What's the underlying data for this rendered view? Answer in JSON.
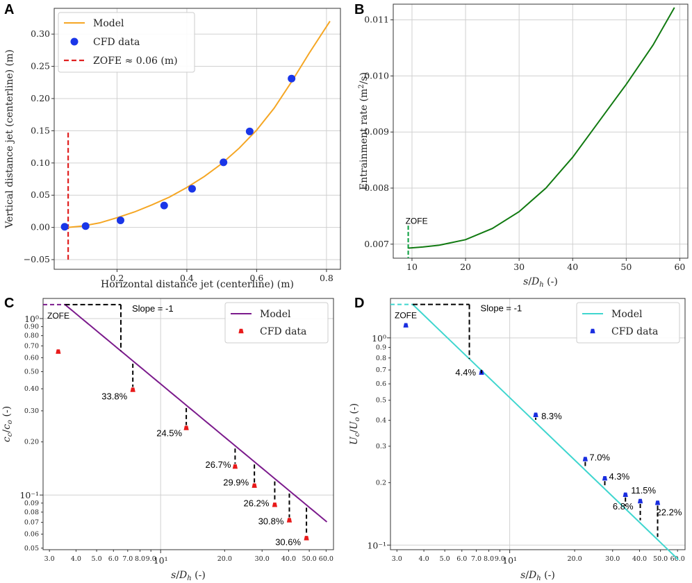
{
  "chart_data": [
    {
      "panel": "A",
      "type": "scatter",
      "xlabel": "Horizontal distance jet (centerline) (m)",
      "ylabel": "Vertical distance jet (centerline) (m)",
      "xlim": [
        0.02,
        0.84
      ],
      "ylim": [
        -0.065,
        0.34
      ],
      "xticks": [
        0.2,
        0.4,
        0.6,
        0.8
      ],
      "xtick_labels": [
        "0.2",
        "0.4",
        "0.6",
        "0.8"
      ],
      "yticks": [
        -0.05,
        0.0,
        0.05,
        0.1,
        0.15,
        0.2,
        0.25,
        0.3
      ],
      "ytick_labels": [
        "−0.05",
        "0.00",
        "0.05",
        "0.10",
        "0.15",
        "0.20",
        "0.25",
        "0.30"
      ],
      "legend": [
        "Model",
        "CFD data",
        "ZOFE ≈ 0.06 (m)"
      ],
      "model": {
        "x": [
          0.06,
          0.1,
          0.15,
          0.2,
          0.25,
          0.3,
          0.35,
          0.4,
          0.45,
          0.5,
          0.55,
          0.6,
          0.65,
          0.7,
          0.75,
          0.81
        ],
        "y": [
          0.0,
          0.002,
          0.007,
          0.015,
          0.024,
          0.035,
          0.047,
          0.062,
          0.079,
          0.099,
          0.123,
          0.151,
          0.185,
          0.226,
          0.27,
          0.32
        ]
      },
      "cfd": {
        "x": [
          0.05,
          0.11,
          0.21,
          0.335,
          0.415,
          0.505,
          0.58,
          0.7
        ],
        "y": [
          0.001,
          0.002,
          0.011,
          0.034,
          0.06,
          0.101,
          0.149,
          0.231
        ]
      },
      "zofe_x": 0.06,
      "zofe_y": [
        -0.05,
        0.15
      ]
    },
    {
      "panel": "B",
      "type": "line",
      "xlabel": "s/D_h (-)",
      "ylabel": "Entrainment rate (m²/s)",
      "xlim": [
        6.5,
        61.5
      ],
      "ylim": [
        0.00675,
        0.01128
      ],
      "xticks": [
        10,
        20,
        30,
        40,
        50,
        60
      ],
      "xtick_labels": [
        "10",
        "20",
        "30",
        "40",
        "50",
        "60"
      ],
      "yticks": [
        0.007,
        0.008,
        0.009,
        0.01,
        0.011
      ],
      "ytick_labels": [
        "0.007",
        "0.008",
        "0.009",
        "0.010",
        "0.011"
      ],
      "model": {
        "x": [
          9.3,
          12,
          15,
          20,
          25,
          30,
          35,
          40,
          45,
          50,
          55,
          59
        ],
        "y": [
          0.00693,
          0.00695,
          0.00698,
          0.00708,
          0.00728,
          0.00758,
          0.008,
          0.00855,
          0.0092,
          0.00985,
          0.01055,
          0.01122
        ]
      },
      "zofe_x": 9.3,
      "zofe_label": "ZOFE"
    },
    {
      "panel": "C",
      "type": "scatter",
      "xscale": "log",
      "yscale": "log",
      "xlabel": "s/D_h (-)",
      "ylabel": "c_c/c_o (-)",
      "xlim": [
        2.8,
        65
      ],
      "ylim": [
        0.049,
        1.3
      ],
      "xticks": [
        3,
        4,
        5,
        6,
        7,
        8,
        9,
        10,
        20,
        30,
        40,
        50,
        60
      ],
      "xtick_labels": [
        "3.0",
        "4.0",
        "5.0",
        "6.0",
        "7.0",
        "8.0",
        "9.0",
        "10¹",
        "20.0",
        "30.0",
        "40.0",
        "50.0",
        "60.0"
      ],
      "yticks": [
        0.05,
        0.06,
        0.07,
        0.08,
        0.09,
        0.1,
        0.2,
        0.3,
        0.4,
        0.5,
        0.6,
        0.7,
        0.8,
        0.9,
        1.0
      ],
      "ytick_labels": [
        "0.05",
        "0.06",
        "0.07",
        "0.08",
        "0.09",
        "10⁻¹",
        "0.20",
        "0.30",
        "0.40",
        "0.50",
        "0.60",
        "0.70",
        "0.80",
        "0.90",
        "10⁰"
      ],
      "legend": [
        "Model",
        "CFD data"
      ],
      "model_x_start": 3.55,
      "model_x_end": 60.5,
      "model_y_at_start": 1.2,
      "zofe_label": "ZOFE",
      "slope_label": "Slope = -1",
      "cfd": {
        "x": [
          3.3,
          7.4,
          13.2,
          22.4,
          27.6,
          34.4,
          40.3,
          48.5
        ],
        "y": [
          0.65,
          0.395,
          0.24,
          0.145,
          0.113,
          0.088,
          0.072,
          0.057
        ]
      },
      "errors": [
        "33.8%",
        "24.5%",
        "26.7%",
        "29.9%",
        "26.2%",
        "30.8%",
        "30.6%"
      ]
    },
    {
      "panel": "D",
      "type": "scatter",
      "xscale": "log",
      "yscale": "log",
      "xlabel": "s/D_h (-)",
      "ylabel": "U_c/U_o (-)",
      "xlim": [
        2.8,
        65
      ],
      "ylim": [
        0.095,
        1.55
      ],
      "xticks": [
        3,
        4,
        5,
        6,
        7,
        8,
        9,
        10,
        20,
        30,
        40,
        50,
        60
      ],
      "xtick_labels": [
        "3.0",
        "4.0",
        "5.0",
        "6.0",
        "7.0",
        "8.0",
        "9.0",
        "10¹",
        "20.0",
        "30.0",
        "40.0",
        "50.0",
        "60.0"
      ],
      "yticks": [
        0.1,
        0.2,
        0.3,
        0.4,
        0.5,
        0.6,
        0.7,
        0.8,
        0.9,
        1.0
      ],
      "ytick_labels": [
        "10⁻¹",
        "0.2",
        "0.3",
        "0.4",
        "0.5",
        "0.6",
        "0.7",
        "0.8",
        "0.9",
        "10⁰"
      ],
      "legend": [
        "Model",
        "CFD data"
      ],
      "model_x_start": 3.55,
      "model_x_end": 60.5,
      "model_y_at_start": 1.45,
      "zofe_label": "ZOFE",
      "slope_label": "Slope = -1",
      "cfd": {
        "x": [
          3.3,
          7.4,
          13.2,
          22.4,
          27.6,
          34.4,
          40.3,
          48.5
        ],
        "y": [
          1.15,
          0.68,
          0.425,
          0.26,
          0.21,
          0.175,
          0.163,
          0.16
        ]
      },
      "errors": [
        "4.4%",
        "8.3%",
        "7.0%",
        "4.3%",
        "11.5%",
        "6.8%",
        "22.2%"
      ]
    }
  ],
  "panel_labels": [
    "A",
    "B",
    "C",
    "D"
  ],
  "colors": {
    "modelA": "#f5a623",
    "cfdA": "#1a36e8",
    "zofeA": "#e02020",
    "modelB": "#117a11",
    "zofeB": "#19a34a",
    "modelC": "#7b1a8c",
    "cfdC": "#e81a1a",
    "modelD": "#3fd6cf",
    "cfdD": "#1a2ee0"
  }
}
